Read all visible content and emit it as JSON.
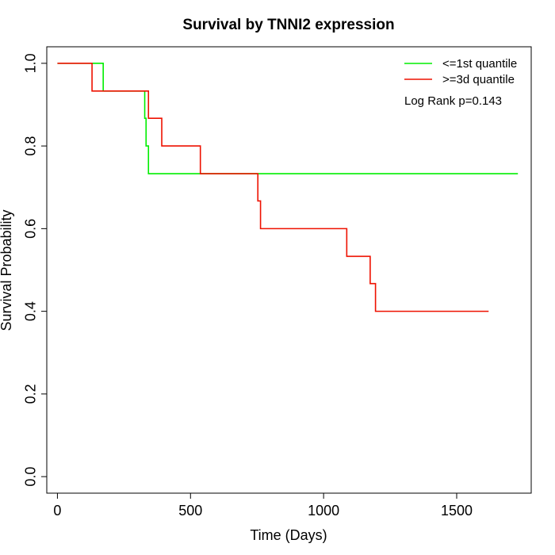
{
  "chart_data": {
    "type": "line",
    "title": "Survival by TNNI2 expression",
    "xlabel": "Time (Days)",
    "ylabel": "Survival Probability",
    "xlim": [
      -40,
      1780
    ],
    "ylim": [
      -0.04,
      1.04
    ],
    "x_ticks": [
      0,
      500,
      1000,
      1500
    ],
    "y_ticks": [
      0.0,
      0.2,
      0.4,
      0.6,
      0.8,
      1.0
    ],
    "x_tick_labels": [
      "0",
      "500",
      "1000",
      "1500"
    ],
    "y_tick_labels": [
      "0.0",
      "0.2",
      "0.4",
      "0.6",
      "0.8",
      "1.0"
    ],
    "grid": false,
    "legend_position": "top-right",
    "annotation": "Log Rank p=0.143",
    "series": [
      {
        "name": "<=1st quantile",
        "color": "#00ee00",
        "step": true,
        "x": [
          0,
          172,
          328,
          333,
          342,
          1730
        ],
        "y": [
          1.0,
          0.933,
          0.867,
          0.8,
          0.733,
          0.733
        ]
      },
      {
        "name": ">=3d quantile",
        "color": "#ee1100",
        "step": true,
        "x": [
          0,
          130,
          342,
          392,
          537,
          753,
          763,
          1087,
          1175,
          1195,
          1620
        ],
        "y": [
          1.0,
          0.933,
          0.867,
          0.8,
          0.733,
          0.667,
          0.6,
          0.533,
          0.467,
          0.4,
          0.4
        ]
      }
    ]
  }
}
